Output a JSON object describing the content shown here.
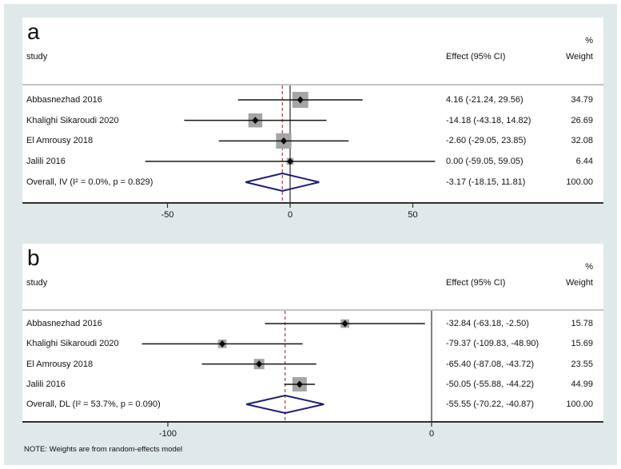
{
  "figure": {
    "note": "NOTE: Weights are from random-effects model",
    "colors": {
      "background": "#dfe9ea",
      "panel_background": "#ffffff",
      "separator_line": "#8a8a8a",
      "axis_line": "#2f2f2f",
      "null_line": "#4a4a4a",
      "overall_dashed_line": "#9f4040",
      "ci_line": "#161616",
      "marker_diamond": "#0a0a0a",
      "weight_box": "#a5a5a5",
      "pooled_diamond": "#1c1c75",
      "text": "#111111"
    }
  },
  "chart_data": [
    {
      "type": "forest",
      "panel_label": "a",
      "columns": {
        "study": "study",
        "effect": "Effect (95% CI)",
        "weight": "Weight",
        "percent_header": "%"
      },
      "x_ticks": [
        -50,
        0,
        50
      ],
      "null_line_x": 0,
      "studies": [
        {
          "study": "Abbasnezhad 2016",
          "effect": 4.16,
          "ci_low": -21.24,
          "ci_high": 29.56,
          "effect_label": "4.16 (-21.24, 29.56)",
          "weight": 34.79,
          "weight_label": "34.79"
        },
        {
          "study": "Khalighi Sikaroudi 2020",
          "effect": -14.18,
          "ci_low": -43.18,
          "ci_high": 14.82,
          "effect_label": "-14.18 (-43.18, 14.82)",
          "weight": 26.69,
          "weight_label": "26.69"
        },
        {
          "study": "El Amrousy 2018",
          "effect": -2.6,
          "ci_low": -29.05,
          "ci_high": 23.85,
          "effect_label": "-2.60 (-29.05, 23.85)",
          "weight": 32.08,
          "weight_label": "32.08"
        },
        {
          "study": "Jalili 2016",
          "effect": 0.0,
          "ci_low": -59.05,
          "ci_high": 59.05,
          "effect_label": "0.00 (-59.05, 59.05)",
          "weight": 6.44,
          "weight_label": "6.44"
        }
      ],
      "overall": {
        "label": "Overall, IV (I² = 0.0%, p = 0.829)",
        "effect": -3.17,
        "ci_low": -18.15,
        "ci_high": 11.81,
        "effect_label": "-3.17 (-18.15, 11.81)",
        "weight_label": "100.00"
      }
    },
    {
      "type": "forest",
      "panel_label": "b",
      "columns": {
        "study": "study",
        "effect": "Effect (95% CI)",
        "weight": "Weight",
        "percent_header": "%"
      },
      "x_ticks": [
        -100,
        0
      ],
      "null_line_x": 0,
      "studies": [
        {
          "study": "Abbasnezhad 2016",
          "effect": -32.84,
          "ci_low": -63.18,
          "ci_high": -2.5,
          "effect_label": "-32.84 (-63.18, -2.50)",
          "weight": 15.78,
          "weight_label": "15.78"
        },
        {
          "study": "Khalighi Sikaroudi 2020",
          "effect": -79.37,
          "ci_low": -109.83,
          "ci_high": -48.9,
          "effect_label": "-79.37 (-109.83, -48.90)",
          "weight": 15.69,
          "weight_label": "15.69"
        },
        {
          "study": "El Amrousy 2018",
          "effect": -65.4,
          "ci_low": -87.08,
          "ci_high": -43.72,
          "effect_label": "-65.40 (-87.08, -43.72)",
          "weight": 23.55,
          "weight_label": "23.55"
        },
        {
          "study": "Jalili 2016",
          "effect": -50.05,
          "ci_low": -55.88,
          "ci_high": -44.22,
          "effect_label": "-50.05 (-55.88, -44.22)",
          "weight": 44.99,
          "weight_label": "44.99"
        }
      ],
      "overall": {
        "label": "Overall, DL (I² = 53.7%, p = 0.090)",
        "effect": -55.55,
        "ci_low": -70.22,
        "ci_high": -40.87,
        "effect_label": "-55.55 (-70.22, -40.87)",
        "weight_label": "100.00"
      }
    }
  ]
}
